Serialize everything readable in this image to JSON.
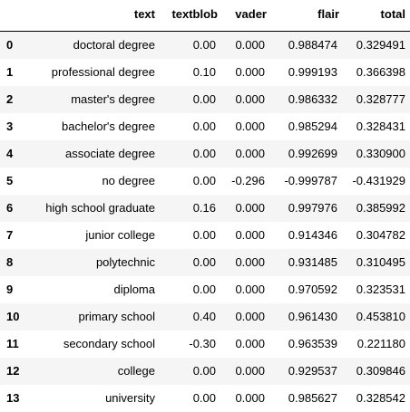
{
  "table": {
    "columns": [
      "",
      "text",
      "textblob",
      "vader",
      "flair",
      "total"
    ],
    "rows": [
      {
        "index": "0",
        "text": "doctoral degree",
        "textblob": "0.00",
        "vader": "0.000",
        "flair": "0.988474",
        "total": "0.329491"
      },
      {
        "index": "1",
        "text": "professional degree",
        "textblob": "0.10",
        "vader": "0.000",
        "flair": "0.999193",
        "total": "0.366398"
      },
      {
        "index": "2",
        "text": "master's degree",
        "textblob": "0.00",
        "vader": "0.000",
        "flair": "0.986332",
        "total": "0.328777"
      },
      {
        "index": "3",
        "text": "bachelor's degree",
        "textblob": "0.00",
        "vader": "0.000",
        "flair": "0.985294",
        "total": "0.328431"
      },
      {
        "index": "4",
        "text": "associate degree",
        "textblob": "0.00",
        "vader": "0.000",
        "flair": "0.992699",
        "total": "0.330900"
      },
      {
        "index": "5",
        "text": "no degree",
        "textblob": "0.00",
        "vader": "-0.296",
        "flair": "-0.999787",
        "total": "-0.431929"
      },
      {
        "index": "6",
        "text": "high school graduate",
        "textblob": "0.16",
        "vader": "0.000",
        "flair": "0.997976",
        "total": "0.385992"
      },
      {
        "index": "7",
        "text": "junior college",
        "textblob": "0.00",
        "vader": "0.000",
        "flair": "0.914346",
        "total": "0.304782"
      },
      {
        "index": "8",
        "text": "polytechnic",
        "textblob": "0.00",
        "vader": "0.000",
        "flair": "0.931485",
        "total": "0.310495"
      },
      {
        "index": "9",
        "text": "diploma",
        "textblob": "0.00",
        "vader": "0.000",
        "flair": "0.970592",
        "total": "0.323531"
      },
      {
        "index": "10",
        "text": "primary school",
        "textblob": "0.40",
        "vader": "0.000",
        "flair": "0.961430",
        "total": "0.453810"
      },
      {
        "index": "11",
        "text": "secondary school",
        "textblob": "-0.30",
        "vader": "0.000",
        "flair": "0.963539",
        "total": "0.221180"
      },
      {
        "index": "12",
        "text": "college",
        "textblob": "0.00",
        "vader": "0.000",
        "flair": "0.929537",
        "total": "0.309846"
      },
      {
        "index": "13",
        "text": "university",
        "textblob": "0.00",
        "vader": "0.000",
        "flair": "0.985627",
        "total": "0.328542"
      }
    ]
  },
  "colors": {
    "stripe": "#f5f5f5",
    "background": "#ffffff",
    "header_rule": "#000000"
  }
}
